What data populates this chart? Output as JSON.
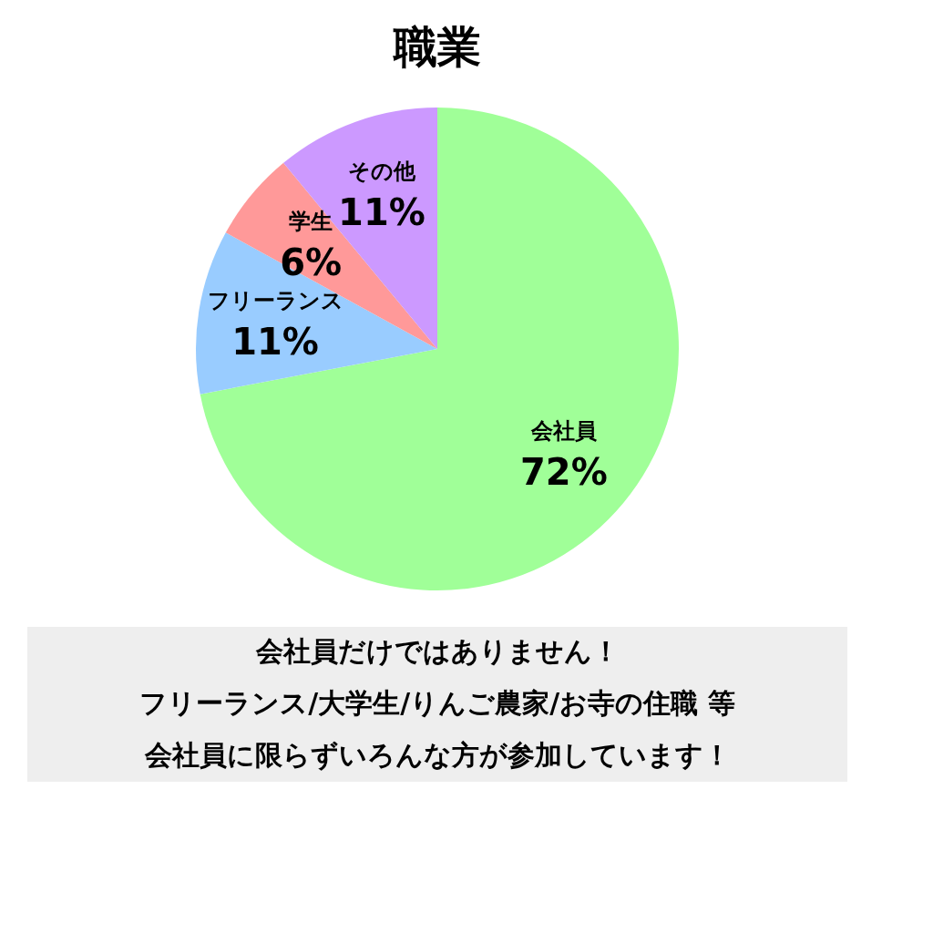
{
  "chart_data": {
    "type": "pie",
    "title": "職業",
    "categories": [
      "会社員",
      "フリーランス",
      "学生",
      "その他"
    ],
    "values": [
      72,
      11,
      6,
      11
    ],
    "value_labels": [
      "72%",
      "11%",
      "6%",
      "11%"
    ],
    "colors": [
      "#a0ff98",
      "#99ccff",
      "#ff9999",
      "#cc99ff"
    ],
    "annotations": [
      "会社員だけではありません！",
      "フリーランス/大学生/りんご農家/お寺の住職 等",
      "会社員に限らずいろんな方が参加しています！"
    ]
  }
}
